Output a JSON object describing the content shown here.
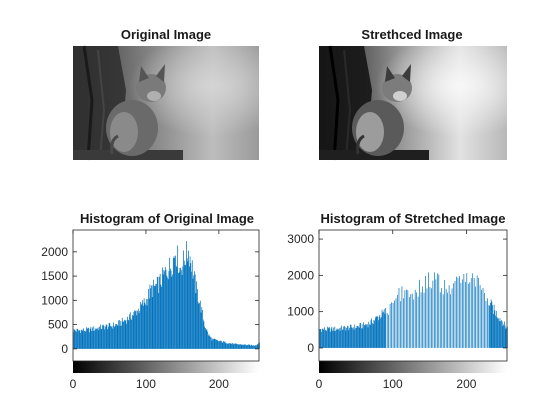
{
  "chart_data": [
    {
      "type": "image",
      "title": "Original Image"
    },
    {
      "type": "image",
      "title": "Strethced Image"
    },
    {
      "type": "bar",
      "title": "Histogram of Original Image",
      "x_range": [
        0,
        255
      ],
      "xlim": [
        0,
        255
      ],
      "ylim": [
        -250,
        2450
      ],
      "x_ticks": [
        0,
        100,
        200
      ],
      "y_ticks": [
        0,
        500,
        1000,
        1500,
        2000
      ],
      "colorbar": "grayscale",
      "profile": [
        [
          0,
          380
        ],
        [
          5,
          380
        ],
        [
          10,
          380
        ],
        [
          20,
          390
        ],
        [
          30,
          420
        ],
        [
          40,
          450
        ],
        [
          50,
          470
        ],
        [
          60,
          500
        ],
        [
          70,
          580
        ],
        [
          80,
          680
        ],
        [
          90,
          820
        ],
        [
          100,
          1000
        ],
        [
          105,
          1180
        ],
        [
          110,
          1260
        ],
        [
          115,
          1300
        ],
        [
          120,
          1400
        ],
        [
          125,
          1550
        ],
        [
          130,
          1640
        ],
        [
          135,
          1740
        ],
        [
          138,
          1900
        ],
        [
          140,
          2020
        ],
        [
          143,
          1870
        ],
        [
          146,
          1650
        ],
        [
          150,
          1760
        ],
        [
          154,
          1920
        ],
        [
          158,
          2010
        ],
        [
          162,
          1780
        ],
        [
          165,
          1500
        ],
        [
          170,
          1150
        ],
        [
          175,
          850
        ],
        [
          180,
          500
        ],
        [
          185,
          300
        ],
        [
          190,
          200
        ],
        [
          200,
          160
        ],
        [
          210,
          130
        ],
        [
          220,
          100
        ],
        [
          230,
          90
        ],
        [
          240,
          80
        ],
        [
          248,
          70
        ],
        [
          252,
          90
        ],
        [
          255,
          140
        ]
      ]
    },
    {
      "type": "bar",
      "title": "Histogram of Stretched Image",
      "x_range": [
        0,
        255
      ],
      "xlim": [
        0,
        255
      ],
      "ylim": [
        -360,
        3250
      ],
      "x_ticks": [
        0,
        100,
        200
      ],
      "y_ticks": [
        0,
        1000,
        2000,
        3000
      ],
      "colorbar": "grayscale",
      "profile": [
        [
          0,
          520
        ],
        [
          10,
          510
        ],
        [
          20,
          520
        ],
        [
          30,
          540
        ],
        [
          40,
          560
        ],
        [
          50,
          580
        ],
        [
          60,
          620
        ],
        [
          70,
          700
        ],
        [
          80,
          860
        ],
        [
          90,
          1000
        ],
        [
          100,
          1150
        ],
        [
          105,
          1380
        ],
        [
          110,
          1500
        ],
        [
          118,
          1560
        ],
        [
          125,
          1530
        ],
        [
          132,
          1600
        ],
        [
          140,
          1700
        ],
        [
          150,
          1850
        ],
        [
          155,
          1950
        ],
        [
          160,
          1820
        ],
        [
          165,
          1700
        ],
        [
          172,
          1640
        ],
        [
          178,
          1600
        ],
        [
          185,
          1720
        ],
        [
          192,
          1850
        ],
        [
          200,
          1980
        ],
        [
          205,
          2100
        ],
        [
          210,
          1980
        ],
        [
          215,
          1820
        ],
        [
          220,
          1600
        ],
        [
          228,
          1350
        ],
        [
          235,
          1100
        ],
        [
          242,
          900
        ],
        [
          248,
          750
        ],
        [
          252,
          600
        ],
        [
          255,
          550
        ]
      ]
    }
  ]
}
